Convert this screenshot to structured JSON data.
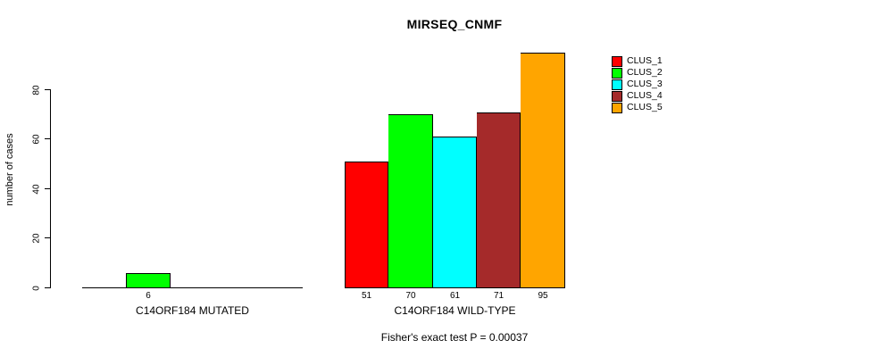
{
  "title": "MIRSEQ_CNMF",
  "y_axis": {
    "label": "number of cases",
    "ticks": [
      0,
      20,
      40,
      60,
      80
    ]
  },
  "footer": "Fisher's exact test P = 0.00037",
  "legend": {
    "items": [
      {
        "label": "CLUS_1",
        "color": "#FF0000"
      },
      {
        "label": "CLUS_2",
        "color": "#00FF00"
      },
      {
        "label": "CLUS_3",
        "color": "#00FFFF"
      },
      {
        "label": "CLUS_4",
        "color": "#A52A2A"
      },
      {
        "label": "CLUS_5",
        "color": "#FFA500"
      }
    ]
  },
  "chart_data": {
    "type": "bar",
    "title": "MIRSEQ_CNMF",
    "xlabel": "",
    "ylabel": "number of cases",
    "ylim": [
      0,
      95
    ],
    "yticks": [
      0,
      20,
      40,
      60,
      80
    ],
    "grid": false,
    "legend_position": "right",
    "series_labels": [
      "CLUS_1",
      "CLUS_2",
      "CLUS_3",
      "CLUS_4",
      "CLUS_5"
    ],
    "colors": [
      "#FF0000",
      "#00FF00",
      "#00FFFF",
      "#A52A2A",
      "#FFA500"
    ],
    "groups": [
      {
        "label": "C14ORF184 MUTATED",
        "values": [
          0,
          6,
          0,
          0,
          0
        ]
      },
      {
        "label": "C14ORF184 WILD-TYPE",
        "values": [
          51,
          70,
          61,
          71,
          95
        ]
      }
    ],
    "annotation": "Fisher's exact test P = 0.00037"
  }
}
